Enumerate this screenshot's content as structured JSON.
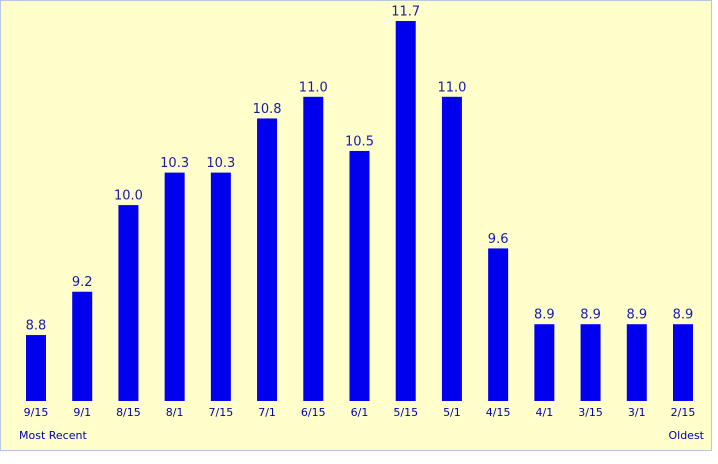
{
  "chart_data": {
    "type": "bar",
    "categories": [
      "9/15",
      "9/1",
      "8/15",
      "8/1",
      "7/15",
      "7/1",
      "6/15",
      "6/1",
      "5/15",
      "5/1",
      "4/15",
      "4/1",
      "3/15",
      "3/1",
      "2/15"
    ],
    "values": [
      8.8,
      9.2,
      10.0,
      10.3,
      10.3,
      10.8,
      11.0,
      10.5,
      11.7,
      11.0,
      9.6,
      8.9,
      8.9,
      8.9,
      8.9
    ],
    "value_labels": [
      "8.8",
      "9.2",
      "10.0",
      "10.3",
      "10.3",
      "10.8",
      "11.0",
      "10.5",
      "11.7",
      "11.0",
      "9.6",
      "8.9",
      "8.9",
      "8.9",
      "8.9"
    ],
    "color": "#0000ee",
    "annotations": [
      "Most Recent",
      "Oldest"
    ]
  }
}
